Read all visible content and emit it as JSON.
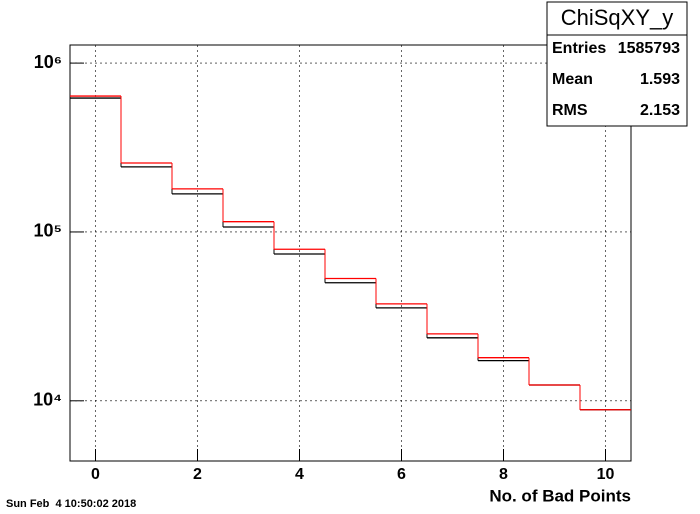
{
  "chart_data": {
    "type": "histogram",
    "title": "ChiSqXY_y",
    "x_label": "No. of Bad Points",
    "timestamp": "Sun Feb  4 10:50:02 2018",
    "bins": [
      -0.5,
      0.5,
      1.5,
      2.5,
      3.5,
      4.5,
      5.5,
      6.5,
      7.5,
      8.5,
      9.5,
      10.5
    ],
    "series": [
      {
        "color": "#000000",
        "values": [
          621000,
          243000,
          168000,
          107000,
          74000,
          50000,
          35500,
          23600,
          17300,
          12400,
          8850
        ]
      },
      {
        "color": "#ff0000",
        "values": [
          638000,
          256000,
          180000,
          115000,
          79000,
          53000,
          37500,
          24900,
          18000,
          12400,
          8850
        ]
      }
    ],
    "xlim": [
      -0.5,
      10.5
    ],
    "xticks": [
      0,
      2,
      4,
      6,
      8,
      10
    ],
    "ylim": [
      4400,
      1280000
    ],
    "log_y": true,
    "yticks": [
      {
        "value": 10000,
        "label": "10⁴"
      },
      {
        "value": 100000,
        "label": "10⁵"
      },
      {
        "value": 1000000,
        "label": "10⁶"
      }
    ],
    "grid": true,
    "stats": {
      "entries_label": "Entries",
      "entries": 1585793,
      "mean_label": "Mean",
      "mean": 1.593,
      "rms_label": "RMS",
      "rms": 2.153
    }
  }
}
